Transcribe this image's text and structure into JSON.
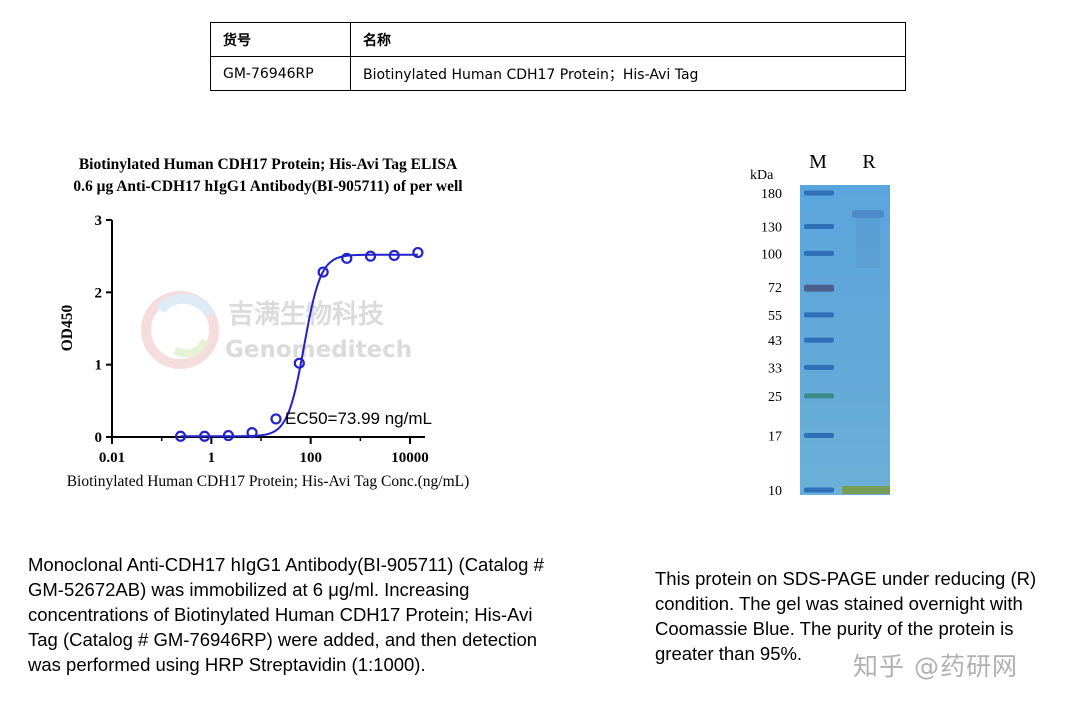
{
  "product_table": {
    "headers": [
      "货号",
      "名称"
    ],
    "row": [
      "GM-76946RP",
      "Biotinylated Human CDH17 Protein；His-Avi Tag"
    ]
  },
  "chart_data": [
    {
      "type": "scatter",
      "title": "Biotinylated Human CDH17 Protein; His-Avi Tag ELISA",
      "subtitle": "0.6 μg Anti-CDH17 hIgG1 Antibody(BI-905711) of  per well",
      "xlabel": "Biotinylated Human CDH17 Protein; His-Avi Tag Conc.(ng/mL)",
      "ylabel": "OD450",
      "xscale": "log",
      "xlim": [
        0.01,
        20000
      ],
      "ylim": [
        0,
        3
      ],
      "xticks": [
        0.01,
        1,
        100,
        10000
      ],
      "xtick_labels": [
        "0.01",
        "1",
        "100",
        "10000"
      ],
      "yticks": [
        0,
        1,
        2,
        3
      ],
      "ytick_labels": [
        "0",
        "1",
        "2",
        "3"
      ],
      "grid": false,
      "annotation": "EC50=73.99 ng/mL",
      "series": [
        {
          "x": [
            0.24,
            0.73,
            2.2,
            6.6,
            20,
            59,
            178,
            533,
            1600,
            4800,
            14400
          ],
          "y": [
            0.01,
            0.01,
            0.02,
            0.06,
            0.25,
            1.02,
            2.28,
            2.47,
            2.5,
            2.51,
            2.55
          ],
          "fit": {
            "model": "4PL",
            "bottom": 0.01,
            "top": 2.52,
            "ec50": 73.99,
            "hill": 2.6
          },
          "color": "#2222cc"
        }
      ],
      "watermark": {
        "cn": "吉满生物科技",
        "en": "Genomeditech"
      }
    }
  ],
  "gel": {
    "unit": "kDa",
    "lanes": [
      "M",
      "R"
    ],
    "markers": [
      "180",
      "130",
      "100",
      "72",
      "55",
      "43",
      "33",
      "25",
      "17",
      "10"
    ],
    "marker_values": [
      180,
      130,
      100,
      72,
      55,
      43,
      33,
      25,
      17,
      10
    ],
    "background": "#5aa0d6"
  },
  "captions": {
    "elisa": "Monoclonal Anti-CDH17 hIgG1 Antibody(BI-905711) (Catalog # GM-52672AB) was immobilized at 6 μg/ml. Increasing concentrations of Biotinylated Human CDH17 Protein; His-Avi Tag (Catalog # GM-76946RP) were added, and then detection was performed using HRP Streptavidin (1:1000).",
    "gel": "This protein on SDS-PAGE under reducing (R) condition. The gel was stained overnight with Coomassie Blue. The purity of the protein is greater than 95%."
  },
  "footer_watermark": "知乎 @药研网"
}
